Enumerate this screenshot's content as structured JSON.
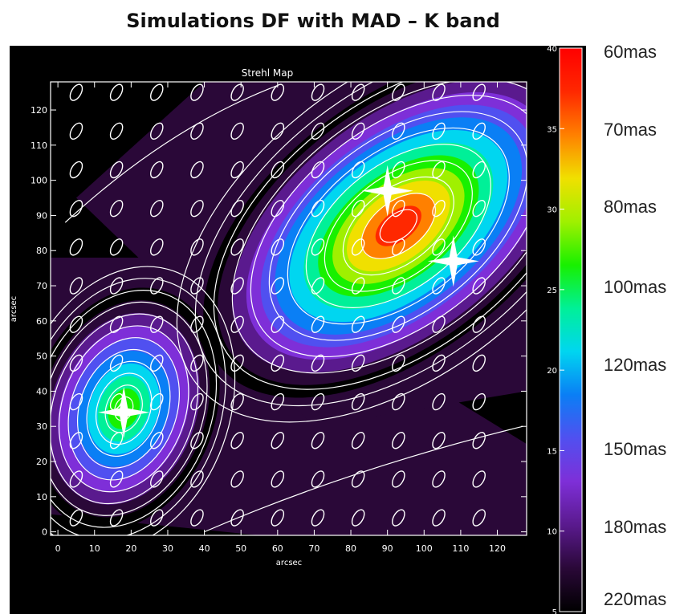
{
  "figure_title": "Simulations DF with MAD – K band",
  "chart_data": {
    "type": "heatmap",
    "title": "Strehl Map",
    "xlabel": "arcsec",
    "ylabel": "arcsec",
    "xlim": [
      -2,
      128
    ],
    "ylim": [
      -1,
      128
    ],
    "x_ticks": [
      0,
      10,
      20,
      30,
      40,
      50,
      60,
      70,
      80,
      90,
      100,
      110,
      120
    ],
    "y_ticks": [
      0,
      10,
      20,
      30,
      40,
      50,
      60,
      70,
      80,
      90,
      100,
      110,
      120
    ],
    "colorbar": {
      "range": [
        5,
        40
      ],
      "ticks": [
        5,
        10,
        15,
        20,
        25,
        30,
        35,
        40
      ],
      "colors": [
        "#000000",
        "#2a0838",
        "#5a1a8e",
        "#7e2fd8",
        "#5050f0",
        "#0a7ff5",
        "#00d6f0",
        "#00f098",
        "#18f000",
        "#a0f000",
        "#f0e000",
        "#ff8000",
        "#ff2800",
        "#ff0000"
      ]
    },
    "peaks": [
      {
        "x": 93,
        "y": 87,
        "strehl": 38
      },
      {
        "x": 18,
        "y": 35,
        "strehl": 28
      }
    ],
    "guide_stars": [
      {
        "x": 90,
        "y": 97
      },
      {
        "x": 108,
        "y": 77
      },
      {
        "x": 18,
        "y": 34
      }
    ],
    "contour_levels": [
      2.5,
      5.0,
      7.5,
      10.0,
      12.5,
      15.0,
      17.5,
      20.0,
      22.5,
      25.0,
      27.5,
      30.0,
      32.5,
      35.0
    ]
  },
  "resolution_labels": [
    "60mas",
    "70mas",
    "80mas",
    "100mas",
    "120mas",
    "150mas",
    "180mas",
    "220mas"
  ]
}
